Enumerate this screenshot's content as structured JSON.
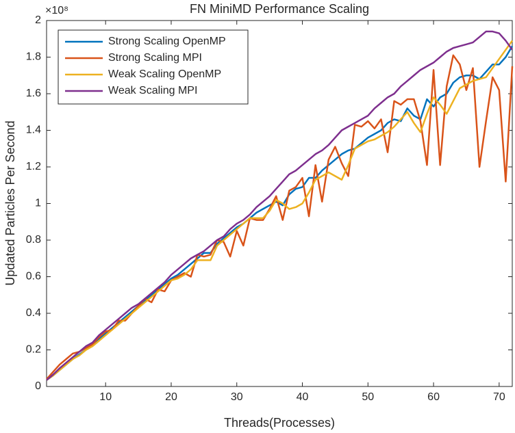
{
  "chart_data": {
    "type": "line",
    "title": "FN MiniMD Performance Scaling",
    "x_label": "Threads(Processes)",
    "y_label": "Updated Particles Per Second",
    "y_exponent": "×10⁸",
    "x": [
      1,
      2,
      3,
      4,
      5,
      6,
      7,
      8,
      9,
      10,
      11,
      12,
      13,
      14,
      15,
      16,
      17,
      18,
      19,
      20,
      21,
      22,
      23,
      24,
      25,
      26,
      27,
      28,
      29,
      30,
      31,
      32,
      33,
      34,
      35,
      36,
      37,
      38,
      39,
      40,
      41,
      42,
      43,
      44,
      45,
      46,
      47,
      48,
      49,
      50,
      51,
      52,
      53,
      54,
      55,
      56,
      57,
      58,
      59,
      60,
      61,
      62,
      63,
      64,
      65,
      66,
      67,
      68,
      69,
      70,
      71,
      72
    ],
    "series": [
      {
        "name": "Strong Scaling OpenMP",
        "color": "#0072BD",
        "values": [
          0.035,
          0.06,
          0.09,
          0.12,
          0.15,
          0.175,
          0.2,
          0.23,
          0.26,
          0.29,
          0.32,
          0.35,
          0.38,
          0.41,
          0.44,
          0.47,
          0.5,
          0.53,
          0.56,
          0.59,
          0.61,
          0.64,
          0.67,
          0.7,
          0.73,
          0.73,
          0.78,
          0.81,
          0.84,
          0.87,
          0.89,
          0.92,
          0.95,
          0.97,
          0.99,
          1.01,
          0.99,
          1.05,
          1.08,
          1.09,
          1.14,
          1.14,
          1.18,
          1.21,
          1.24,
          1.27,
          1.29,
          1.3,
          1.33,
          1.36,
          1.38,
          1.4,
          1.44,
          1.46,
          1.45,
          1.52,
          1.48,
          1.46,
          1.57,
          1.53,
          1.58,
          1.6,
          1.66,
          1.69,
          1.7,
          1.7,
          1.68,
          1.72,
          1.76,
          1.76,
          1.8,
          1.86
        ]
      },
      {
        "name": "Strong Scaling MPI",
        "color": "#D95319",
        "values": [
          0.04,
          0.08,
          0.12,
          0.15,
          0.18,
          0.19,
          0.21,
          0.23,
          0.27,
          0.3,
          0.31,
          0.36,
          0.36,
          0.4,
          0.44,
          0.48,
          0.46,
          0.53,
          0.52,
          0.58,
          0.6,
          0.62,
          0.6,
          0.72,
          0.71,
          0.72,
          0.8,
          0.79,
          0.71,
          0.85,
          0.77,
          0.92,
          0.91,
          0.91,
          0.97,
          1.04,
          0.91,
          1.07,
          1.09,
          1.14,
          0.93,
          1.21,
          1.01,
          1.24,
          1.31,
          1.22,
          1.15,
          1.43,
          1.42,
          1.45,
          1.41,
          1.46,
          1.28,
          1.56,
          1.54,
          1.57,
          1.57,
          1.45,
          1.21,
          1.73,
          1.21,
          1.64,
          1.81,
          1.76,
          1.62,
          1.74,
          1.2,
          1.45,
          1.69,
          1.62,
          1.12,
          1.75
        ]
      },
      {
        "name": "Weak Scaling OpenMP",
        "color": "#EDB120",
        "values": [
          0.035,
          0.06,
          0.09,
          0.12,
          0.15,
          0.17,
          0.2,
          0.22,
          0.25,
          0.28,
          0.31,
          0.34,
          0.37,
          0.4,
          0.43,
          0.46,
          0.49,
          0.52,
          0.55,
          0.58,
          0.59,
          0.61,
          0.64,
          0.69,
          0.69,
          0.69,
          0.77,
          0.8,
          0.83,
          0.86,
          0.89,
          0.92,
          0.92,
          0.92,
          0.96,
          1.02,
          1.0,
          0.97,
          0.98,
          1.0,
          1.06,
          1.13,
          1.15,
          1.17,
          1.15,
          1.13,
          1.21,
          1.3,
          1.32,
          1.34,
          1.35,
          1.37,
          1.39,
          1.42,
          1.46,
          1.5,
          1.44,
          1.39,
          1.49,
          1.58,
          1.54,
          1.49,
          1.56,
          1.63,
          1.65,
          1.67,
          1.68,
          1.69,
          1.74,
          1.79,
          1.84,
          1.89
        ]
      },
      {
        "name": "Weak Scaling MPI",
        "color": "#7E2F8E",
        "values": [
          0.035,
          0.065,
          0.1,
          0.13,
          0.16,
          0.19,
          0.22,
          0.24,
          0.28,
          0.31,
          0.34,
          0.37,
          0.4,
          0.43,
          0.45,
          0.48,
          0.51,
          0.54,
          0.57,
          0.61,
          0.64,
          0.67,
          0.7,
          0.72,
          0.74,
          0.77,
          0.8,
          0.82,
          0.86,
          0.89,
          0.91,
          0.94,
          0.98,
          1.01,
          1.04,
          1.08,
          1.12,
          1.16,
          1.18,
          1.21,
          1.24,
          1.27,
          1.29,
          1.32,
          1.36,
          1.4,
          1.42,
          1.44,
          1.46,
          1.48,
          1.52,
          1.55,
          1.58,
          1.6,
          1.64,
          1.67,
          1.7,
          1.73,
          1.75,
          1.77,
          1.8,
          1.83,
          1.85,
          1.86,
          1.87,
          1.88,
          1.91,
          1.94,
          1.94,
          1.93,
          1.89,
          1.84
        ]
      }
    ],
    "xlim": [
      1,
      72
    ],
    "xticks": [
      10,
      20,
      30,
      40,
      50,
      60,
      70
    ],
    "ylim": [
      0,
      2
    ],
    "yticks": [
      0,
      0.2,
      0.4,
      0.6,
      0.8,
      1,
      1.2,
      1.4,
      1.6,
      1.8,
      2
    ],
    "grid": false,
    "legend": "northwest"
  }
}
